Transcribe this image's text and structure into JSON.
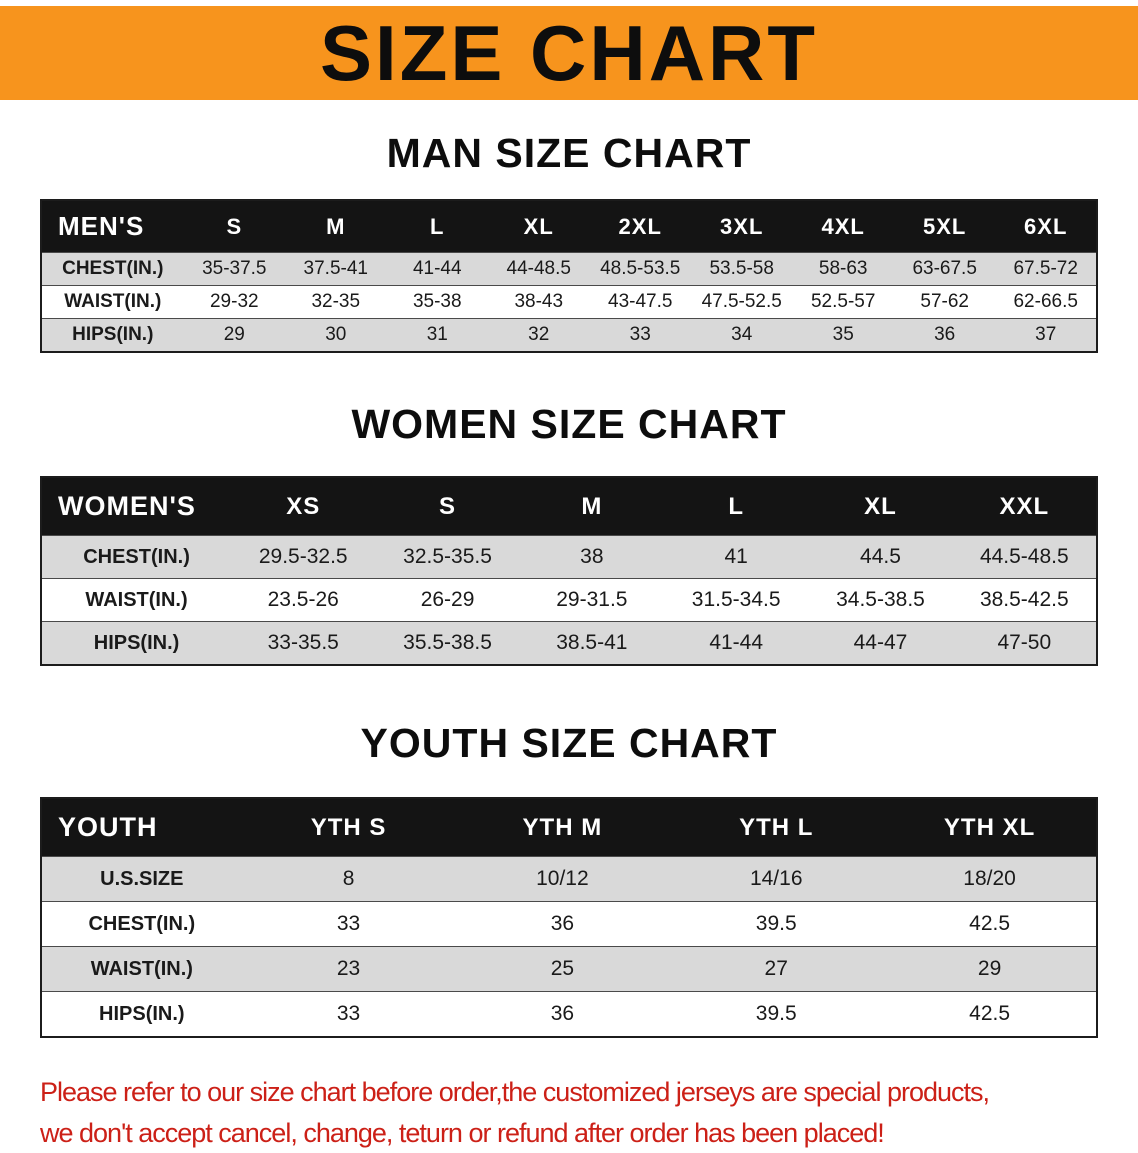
{
  "banner": {
    "title": "SIZE CHART"
  },
  "colors": {
    "banner_bg": "#F7941D",
    "table_header_bg": "#141414",
    "table_header_text": "#ffffff",
    "row_alt_gray": "#d9d9d9",
    "disclaimer_red": "#cc2017"
  },
  "chart_data": [
    {
      "type": "table",
      "title": "MAN SIZE CHART",
      "columns": [
        "MEN'S",
        "S",
        "M",
        "L",
        "XL",
        "2XL",
        "3XL",
        "4XL",
        "5XL",
        "6XL"
      ],
      "rows": [
        [
          "CHEST(IN.)",
          "35-37.5",
          "37.5-41",
          "41-44",
          "44-48.5",
          "48.5-53.5",
          "53.5-58",
          "58-63",
          "63-67.5",
          "67.5-72"
        ],
        [
          "WAIST(IN.)",
          "29-32",
          "32-35",
          "35-38",
          "38-43",
          "43-47.5",
          "47.5-52.5",
          "52.5-57",
          "57-62",
          "62-66.5"
        ],
        [
          "HIPS(IN.)",
          "29",
          "30",
          "31",
          "32",
          "33",
          "34",
          "35",
          "36",
          "37"
        ]
      ]
    },
    {
      "type": "table",
      "title": "WOMEN SIZE CHART",
      "columns": [
        "WOMEN'S",
        "XS",
        "S",
        "M",
        "L",
        "XL",
        "XXL"
      ],
      "rows": [
        [
          "CHEST(IN.)",
          "29.5-32.5",
          "32.5-35.5",
          "38",
          "41",
          "44.5",
          "44.5-48.5"
        ],
        [
          "WAIST(IN.)",
          "23.5-26",
          "26-29",
          "29-31.5",
          "31.5-34.5",
          "34.5-38.5",
          "38.5-42.5"
        ],
        [
          "HIPS(IN.)",
          "33-35.5",
          "35.5-38.5",
          "38.5-41",
          "41-44",
          "44-47",
          "47-50"
        ]
      ]
    },
    {
      "type": "table",
      "title": "YOUTH SIZE CHART",
      "columns": [
        "YOUTH",
        "YTH S",
        "YTH M",
        "YTH L",
        "YTH XL"
      ],
      "rows": [
        [
          "U.S.SIZE",
          "8",
          "10/12",
          "14/16",
          "18/20"
        ],
        [
          "CHEST(IN.)",
          "33",
          "36",
          "39.5",
          "42.5"
        ],
        [
          "WAIST(IN.)",
          "23",
          "25",
          "27",
          "29"
        ],
        [
          "HIPS(IN.)",
          "33",
          "36",
          "39.5",
          "42.5"
        ]
      ]
    }
  ],
  "footer": {
    "line1": "Please refer to our size chart before order,the customized jerseys are special products,",
    "line2": "we don't accept cancel, change, teturn or refund after order has been placed!"
  }
}
